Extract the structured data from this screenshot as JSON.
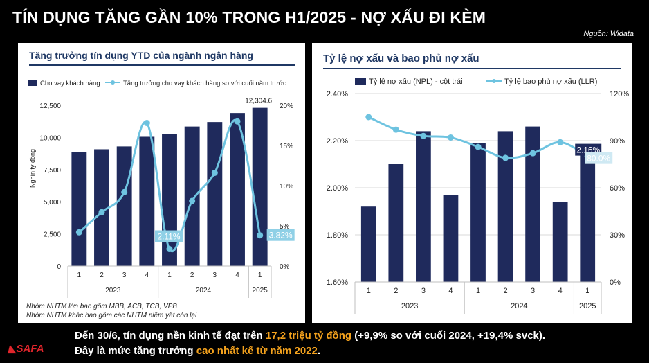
{
  "header": {
    "title": "TÍN DỤNG TĂNG GẦN 10% TRONG H1/2025 - NỢ XẤU ĐI KÈM",
    "source": "Nguồn: Widata"
  },
  "chart_data": [
    {
      "type": "bar",
      "title": "Tăng trưởng tín dụng YTD của ngành ngân hàng",
      "ylabel": "Nghìn tỷ đồng",
      "categories": [
        "1",
        "2",
        "3",
        "4",
        "1",
        "2",
        "3",
        "4",
        "1"
      ],
      "groups": [
        {
          "label": "2023",
          "span": 4
        },
        {
          "label": "2024",
          "span": 4
        },
        {
          "label": "2025",
          "span": 1
        }
      ],
      "ylim": [
        0,
        12500
      ],
      "yticks": [
        "0",
        "2,500",
        "5,000",
        "7,500",
        "10,000",
        "12,500"
      ],
      "y2lim": [
        0,
        20
      ],
      "y2ticks": [
        "0%",
        "5%",
        "10%",
        "15%",
        "20%"
      ],
      "legend_position": "top",
      "series": [
        {
          "name": "Cho vay khách hàng",
          "type": "bar",
          "axis": "left",
          "color": "#1f2a5c",
          "values": [
            8850,
            9080,
            9300,
            10050,
            10250,
            10850,
            11200,
            11900,
            12304.6
          ]
        },
        {
          "name": "Tăng trưởng cho vay khách hàng so với cuối năm trước",
          "type": "line",
          "axis": "right",
          "color": "#6ec3e0",
          "values": [
            4.2,
            6.7,
            9.2,
            17.8,
            2.11,
            8.1,
            11.6,
            18.0,
            3.82
          ]
        }
      ],
      "data_labels": {
        "bar_last": "12,304.6",
        "line_low": "2.11%",
        "line_last": "3.82%"
      },
      "notes": [
        "Nhóm NHTM lớn bao gồm MBB, ACB, TCB, VPB",
        "Nhóm NHTM khác bao gồm các NHTM niêm yết còn lại"
      ]
    },
    {
      "type": "bar",
      "title": "Tỷ lệ nợ xấu và bao phủ nợ xấu",
      "categories": [
        "1",
        "2",
        "3",
        "4",
        "1",
        "2",
        "3",
        "4",
        "1"
      ],
      "groups": [
        {
          "label": "2023",
          "span": 4
        },
        {
          "label": "2024",
          "span": 4
        },
        {
          "label": "2025",
          "span": 1
        }
      ],
      "ylim": [
        1.6,
        2.4
      ],
      "yticks": [
        "1.60%",
        "1.80%",
        "2.00%",
        "2.20%",
        "2.40%"
      ],
      "y2lim": [
        0,
        120
      ],
      "y2ticks": [
        "0%",
        "30%",
        "60%",
        "90%",
        "120%"
      ],
      "legend_position": "top",
      "series": [
        {
          "name": "Tỷ lệ nợ xấu (NPL) - cột trái",
          "type": "bar",
          "axis": "left",
          "color": "#1f2a5c",
          "values": [
            1.92,
            2.1,
            2.24,
            1.97,
            2.19,
            2.24,
            2.26,
            1.94,
            2.16
          ]
        },
        {
          "name": "Tỷ lệ bao phủ nợ xấu (LLR)",
          "type": "line",
          "axis": "right",
          "color": "#6ec3e0",
          "values": [
            105,
            97,
            93,
            92,
            86,
            79,
            82,
            89,
            80
          ]
        }
      ],
      "data_labels": {
        "bar_last": "2.16%",
        "line_last": "80.0%"
      }
    }
  ],
  "footer": {
    "line1_a": "Đến 30/6, tín dụng nền kinh tế đạt trên ",
    "line1_hl": "17,2 triệu tỷ đồng",
    "line1_b": " (+9,9% so với cuối 2024, +19,4% svck).",
    "line2_a": "Đây là mức tăng trưởng ",
    "line2_hl": "cao nhất kể từ năm 2022",
    "line2_b": ".",
    "logo": "SAFA",
    "accent": "#f4a21d"
  }
}
